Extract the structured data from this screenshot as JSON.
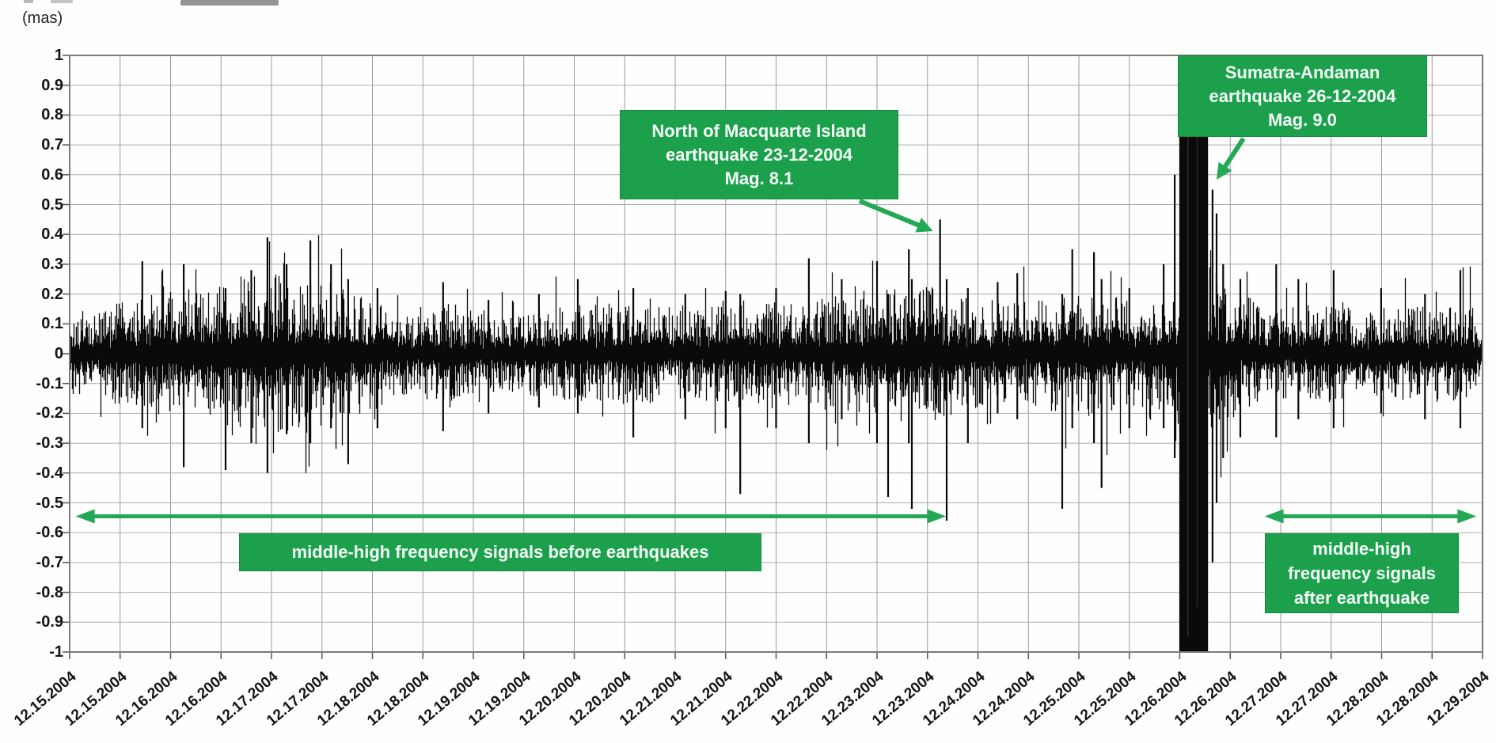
{
  "chart_data": {
    "type": "line",
    "description": "High-frequency geodetic signal (seismogram-like noise trace) around the December 2004 earthquakes",
    "y_unit_label": "(mas)",
    "ylim": [
      -1,
      1
    ],
    "ytick_step": 0.1,
    "ytick_labels": [
      "1",
      "0.9",
      "0.8",
      "0.7",
      "0.6",
      "0.5",
      "0.4",
      "0.3",
      "0.2",
      "0.1",
      "0",
      "-0.1",
      "-0.2",
      "-0.3",
      "-0.4",
      "-0.5",
      "-0.6",
      "-0.7",
      "-0.8",
      "-0.9",
      "-1"
    ],
    "xtick_labels": [
      "12.15.2004",
      "12.15.2004",
      "12.16.2004",
      "12.16.2004",
      "12.17.2004",
      "12.17.2004",
      "12.18.2004",
      "12.18.2004",
      "12.19.2004",
      "12.19.2004",
      "12.20.2004",
      "12.20.2004",
      "12.21.2004",
      "12.21.2004",
      "12.22.2004",
      "12.22.2004",
      "12.23.2004",
      "12.23.2004",
      "12.24.2004",
      "12.24.2004",
      "12.25.2004",
      "12.25.2004",
      "12.26.2004",
      "12.26.2004",
      "12.27.2004",
      "12.27.2004",
      "12.28.2004",
      "12.28.2004",
      "12.29.2004"
    ],
    "x_interval_count": 28,
    "grid": true,
    "colors": {
      "annotation_green": "#1ca04c",
      "arrow_green": "#23a955",
      "signal_black": "#0a0a0a",
      "grid_gray": "#a6a6a6",
      "border_gray": "#7a7a7a"
    },
    "signal": {
      "name": "middle-high frequency signal",
      "envelope": [
        [
          0,
          0.1
        ],
        [
          0.5,
          0.11
        ],
        [
          1,
          0.13
        ],
        [
          1.5,
          0.14
        ],
        [
          2,
          0.15
        ],
        [
          3,
          0.17
        ],
        [
          3.9,
          0.21
        ],
        [
          4.8,
          0.19
        ],
        [
          5.5,
          0.16
        ],
        [
          6.3,
          0.12
        ],
        [
          7,
          0.11
        ],
        [
          7.5,
          0.13
        ],
        [
          8.2,
          0.1
        ],
        [
          9,
          0.1
        ],
        [
          9.8,
          0.12
        ],
        [
          10.6,
          0.13
        ],
        [
          11.5,
          0.13
        ],
        [
          12.3,
          0.12
        ],
        [
          13,
          0.13
        ],
        [
          13.8,
          0.13
        ],
        [
          14.6,
          0.14
        ],
        [
          15.4,
          0.14
        ],
        [
          16.2,
          0.17
        ],
        [
          17,
          0.17
        ],
        [
          17.6,
          0.15
        ],
        [
          18.3,
          0.13
        ],
        [
          19,
          0.13
        ],
        [
          19.8,
          0.15
        ],
        [
          20.6,
          0.15
        ],
        [
          21.2,
          0.13
        ],
        [
          21.9,
          0.17
        ],
        [
          22.0,
          0.2
        ],
        [
          22.56,
          0.22
        ],
        [
          22.9,
          0.17
        ],
        [
          23.5,
          0.13
        ],
        [
          24.2,
          0.12
        ],
        [
          25,
          0.12
        ],
        [
          25.8,
          0.11
        ],
        [
          26.5,
          0.12
        ],
        [
          27.3,
          0.12
        ],
        [
          27.8,
          0.13
        ],
        [
          27.95,
          0.05
        ],
        [
          28,
          0.03
        ]
      ],
      "spikes": [
        [
          1.44,
          0.31,
          -0.25
        ],
        [
          2.26,
          0.3,
          -0.38
        ],
        [
          3.09,
          0.22,
          -0.39
        ],
        [
          3.6,
          0.28,
          -0.3
        ],
        [
          3.92,
          0.39,
          -0.4
        ],
        [
          4.3,
          0.3,
          -0.27
        ],
        [
          4.77,
          0.38,
          -0.3
        ],
        [
          5.18,
          0.3,
          -0.25
        ],
        [
          5.52,
          0.25,
          -0.37
        ],
        [
          6.1,
          0.22,
          -0.25
        ],
        [
          7.4,
          0.24,
          -0.26
        ],
        [
          8.3,
          0.18,
          -0.2
        ],
        [
          9.3,
          0.2,
          -0.18
        ],
        [
          10.07,
          0.25,
          -0.2
        ],
        [
          11.17,
          0.22,
          -0.28
        ],
        [
          12.2,
          0.2,
          -0.22
        ],
        [
          13.0,
          0.21,
          -0.25
        ],
        [
          13.29,
          0.2,
          -0.47
        ],
        [
          14.0,
          0.22,
          -0.25
        ],
        [
          14.65,
          0.32,
          -0.3
        ],
        [
          15.3,
          0.25,
          -0.22
        ],
        [
          16.0,
          0.31,
          -0.3
        ],
        [
          16.22,
          0.2,
          -0.48
        ],
        [
          16.63,
          0.35,
          -0.3
        ],
        [
          16.69,
          0.25,
          -0.52
        ],
        [
          17.25,
          0.45,
          -0.2
        ],
        [
          17.38,
          0.25,
          -0.56
        ],
        [
          17.8,
          0.22,
          -0.3
        ],
        [
          18.39,
          0.24,
          -0.2
        ],
        [
          18.78,
          0.27,
          -0.22
        ],
        [
          19.67,
          0.2,
          -0.52
        ],
        [
          19.87,
          0.35,
          -0.25
        ],
        [
          20.3,
          0.34,
          -0.3
        ],
        [
          20.45,
          0.25,
          -0.45
        ],
        [
          21.0,
          0.22,
          -0.25
        ],
        [
          21.68,
          0.3,
          -0.25
        ],
        [
          21.9,
          0.6,
          -0.35
        ],
        [
          22.65,
          0.55,
          -0.7
        ],
        [
          22.73,
          0.47,
          -0.5
        ],
        [
          22.86,
          0.3,
          -0.35
        ],
        [
          23.2,
          0.25,
          -0.28
        ],
        [
          23.91,
          0.3,
          -0.28
        ],
        [
          24.35,
          0.25,
          -0.22
        ],
        [
          25.05,
          0.28,
          -0.25
        ],
        [
          25.99,
          0.22,
          -0.2
        ],
        [
          26.86,
          0.2,
          -0.22
        ],
        [
          27.56,
          0.28,
          -0.25
        ]
      ],
      "saturated_band": {
        "from_hd": 21.99,
        "to_hd": 22.56,
        "top_value": 1,
        "bottom_value": -1
      }
    },
    "annotations": {
      "macquarie": {
        "text": "North of Macquarte Island\nearthquake 23-12-2004\nMag. 8.1",
        "target_hd": 17.25,
        "target_value": 0.45
      },
      "sumatra": {
        "text": "Sumatra-Andaman\nearthquake 26-12-2004\nMag. 9.0",
        "target_hd": 22.68,
        "target_value": 0.5
      },
      "before": {
        "text": "middle-high frequency signals before earthquakes",
        "arrow": {
          "from_hd": 0.12,
          "to_hd": 17.37,
          "y_value": -0.545
        }
      },
      "after": {
        "text": "middle-high\nfrequency signals\nafter earthquake",
        "arrow": {
          "from_hd": 23.68,
          "to_hd": 27.88,
          "y_value": -0.545
        }
      }
    }
  }
}
